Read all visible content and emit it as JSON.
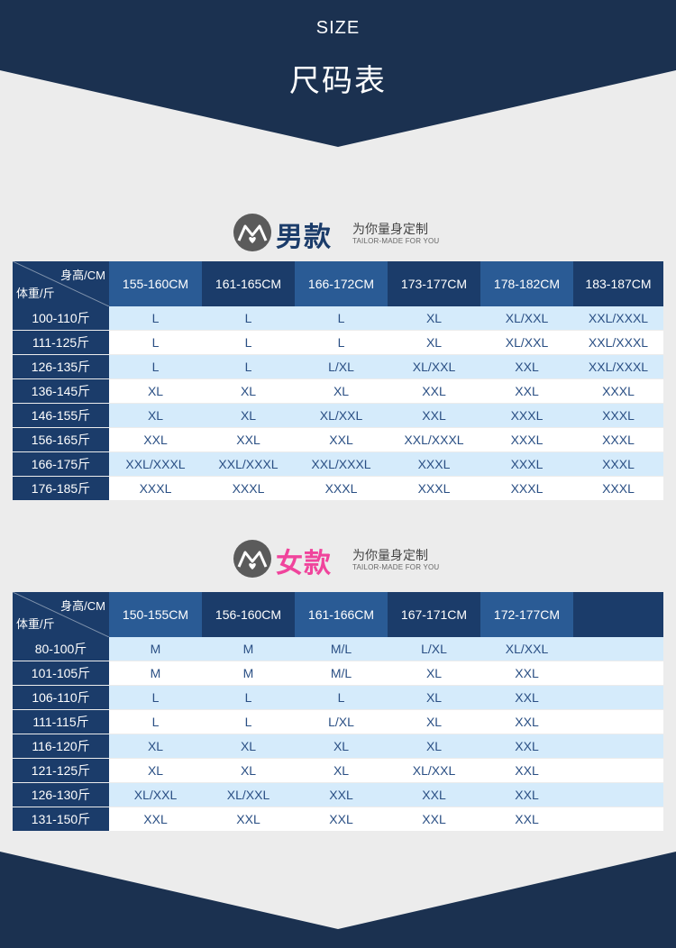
{
  "header": {
    "size_label": "SIZE",
    "title": "尺码表"
  },
  "colors": {
    "navy": "#1b3c6a",
    "header_alt": "#2a5b95",
    "row_tint": "#d5ebfb",
    "men_accent": "#1b3c6a",
    "women_accent": "#f0449c"
  },
  "sections": [
    {
      "title": "男款",
      "slogan": "为你量身定制",
      "slogan_en": "TAILOR-MADE FOR YOU",
      "corner": {
        "height_label": "身高/CM",
        "weight_label": "体重/斤"
      },
      "heights": [
        "155-160CM",
        "161-165CM",
        "166-172CM",
        "173-177CM",
        "178-182CM",
        "183-187CM"
      ],
      "rows": [
        {
          "weight": "100-110斤",
          "sizes": [
            "L",
            "L",
            "L",
            "XL",
            "XL/XXL",
            "XXL/XXXL"
          ]
        },
        {
          "weight": "111-125斤",
          "sizes": [
            "L",
            "L",
            "L",
            "XL",
            "XL/XXL",
            "XXL/XXXL"
          ]
        },
        {
          "weight": "126-135斤",
          "sizes": [
            "L",
            "L",
            "L/XL",
            "XL/XXL",
            "XXL",
            "XXL/XXXL"
          ]
        },
        {
          "weight": "136-145斤",
          "sizes": [
            "XL",
            "XL",
            "XL",
            "XXL",
            "XXL",
            "XXXL"
          ]
        },
        {
          "weight": "146-155斤",
          "sizes": [
            "XL",
            "XL",
            "XL/XXL",
            "XXL",
            "XXXL",
            "XXXL"
          ]
        },
        {
          "weight": "156-165斤",
          "sizes": [
            "XXL",
            "XXL",
            "XXL",
            "XXL/XXXL",
            "XXXL",
            "XXXL"
          ]
        },
        {
          "weight": "166-175斤",
          "sizes": [
            "XXL/XXXL",
            "XXL/XXXL",
            "XXL/XXXL",
            "XXXL",
            "XXXL",
            "XXXL"
          ]
        },
        {
          "weight": "176-185斤",
          "sizes": [
            "XXXL",
            "XXXL",
            "XXXL",
            "XXXL",
            "XXXL",
            "XXXL"
          ]
        }
      ]
    },
    {
      "title": "女款",
      "slogan": "为你量身定制",
      "slogan_en": "TAILOR-MADE FOR YOU",
      "corner": {
        "height_label": "身高/CM",
        "weight_label": "体重/斤"
      },
      "heights": [
        "150-155CM",
        "156-160CM",
        "161-166CM",
        "167-171CM",
        "172-177CM",
        ""
      ],
      "rows": [
        {
          "weight": "80-100斤",
          "sizes": [
            "M",
            "M",
            "M/L",
            "L/XL",
            "XL/XXL",
            ""
          ]
        },
        {
          "weight": "101-105斤",
          "sizes": [
            "M",
            "M",
            "M/L",
            "XL",
            "XXL",
            ""
          ]
        },
        {
          "weight": "106-110斤",
          "sizes": [
            "L",
            "L",
            "L",
            "XL",
            "XXL",
            ""
          ]
        },
        {
          "weight": "111-115斤",
          "sizes": [
            "L",
            "L",
            "L/XL",
            "XL",
            "XXL",
            ""
          ]
        },
        {
          "weight": "116-120斤",
          "sizes": [
            "XL",
            "XL",
            "XL",
            "XL",
            "XXL",
            ""
          ]
        },
        {
          "weight": "121-125斤",
          "sizes": [
            "XL",
            "XL",
            "XL",
            "XL/XXL",
            "XXL",
            ""
          ]
        },
        {
          "weight": "126-130斤",
          "sizes": [
            "XL/XXL",
            "XL/XXL",
            "XXL",
            "XXL",
            "XXL",
            ""
          ]
        },
        {
          "weight": "131-150斤",
          "sizes": [
            "XXL",
            "XXL",
            "XXL",
            "XXL",
            "XXL",
            ""
          ]
        }
      ]
    }
  ]
}
